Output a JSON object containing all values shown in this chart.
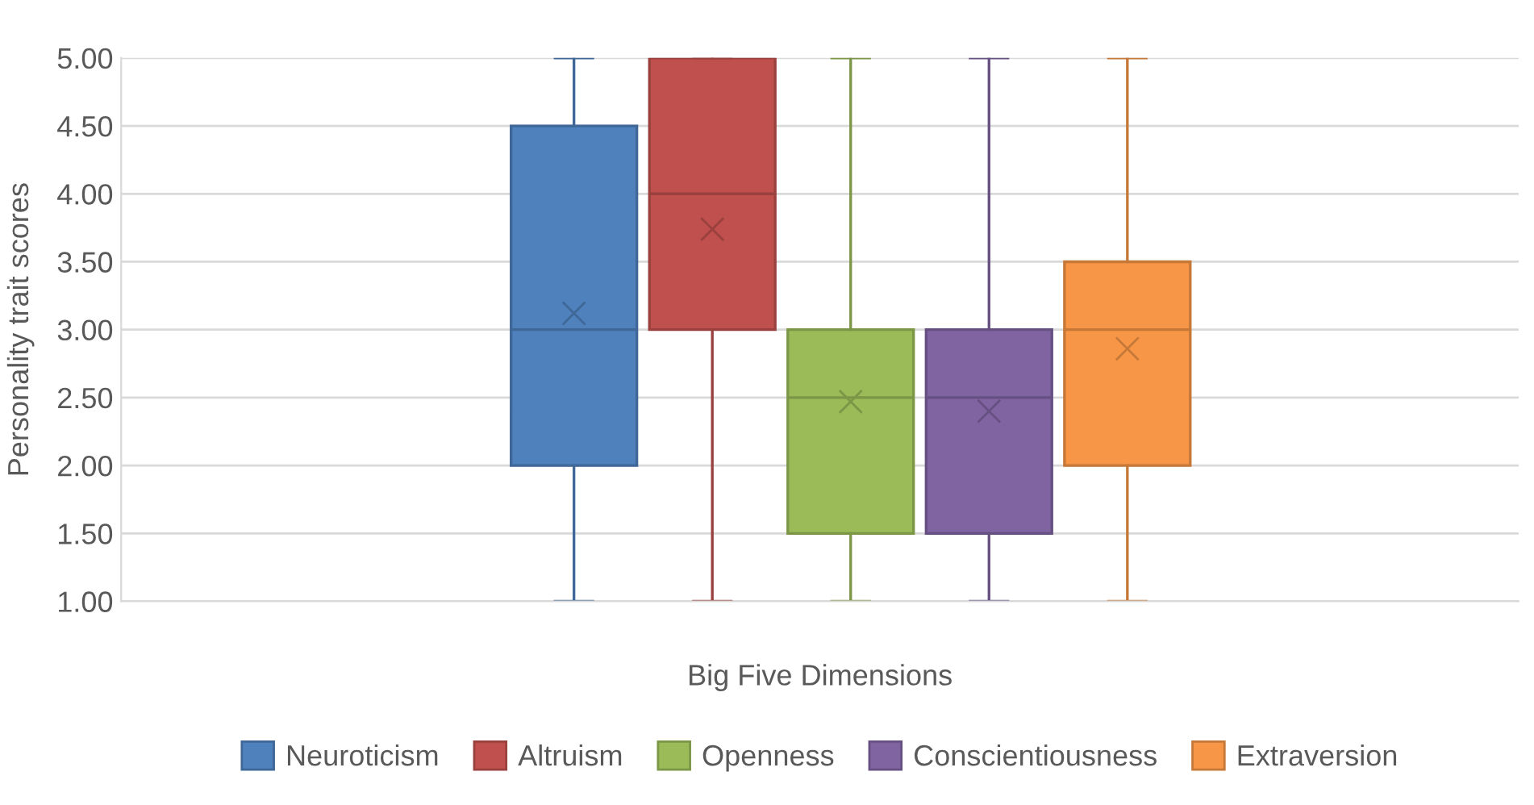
{
  "chart_data": {
    "type": "box",
    "xlabel": "Big Five Dimensions",
    "ylabel": "Personality trait scores",
    "categories": [
      null
    ],
    "series": [
      {
        "name": "Neuroticism",
        "color": "#4f81bd",
        "boxes": [
          {
            "low": 1,
            "q1": 2,
            "median": 3,
            "q3": 4.5,
            "high": 5,
            "mean": 3.12
          }
        ]
      },
      {
        "name": "Altruism",
        "color": "#c0504d",
        "boxes": [
          {
            "low": 1,
            "q1": 3,
            "median": 4,
            "q3": 5,
            "high": 5,
            "mean": 3.74
          }
        ]
      },
      {
        "name": "Openness",
        "color": "#9bbb59",
        "boxes": [
          {
            "low": 1,
            "q1": 1.5,
            "median": 2.5,
            "q3": 3,
            "high": 5,
            "mean": 2.47
          }
        ]
      },
      {
        "name": "Conscientiousness",
        "color": "#8064a2",
        "boxes": [
          {
            "low": 1,
            "q1": 1.5,
            "median": 2.5,
            "q3": 3,
            "high": 5,
            "mean": 2.4
          }
        ]
      },
      {
        "name": "Extraversion",
        "color": "#f79646",
        "boxes": [
          {
            "low": 1,
            "q1": 2,
            "median": 3,
            "q3": 3.5,
            "high": 5,
            "mean": 2.86
          }
        ]
      }
    ],
    "ylim": [
      1,
      5
    ],
    "yticks": [
      {
        "value": 1,
        "label": "1.00"
      },
      {
        "value": 1.5,
        "label": "1.50"
      },
      {
        "value": 2,
        "label": "2.00"
      },
      {
        "value": 2.5,
        "label": "2.50"
      },
      {
        "value": 3,
        "label": "3.00"
      },
      {
        "value": 3.5,
        "label": "3.50"
      },
      {
        "value": 4,
        "label": "4.00"
      },
      {
        "value": 4.5,
        "label": "4.50"
      },
      {
        "value": 5,
        "label": "5.00"
      }
    ],
    "tick_labels": "y",
    "grid": "y",
    "legend": "bottom",
    "marker": "cross"
  }
}
